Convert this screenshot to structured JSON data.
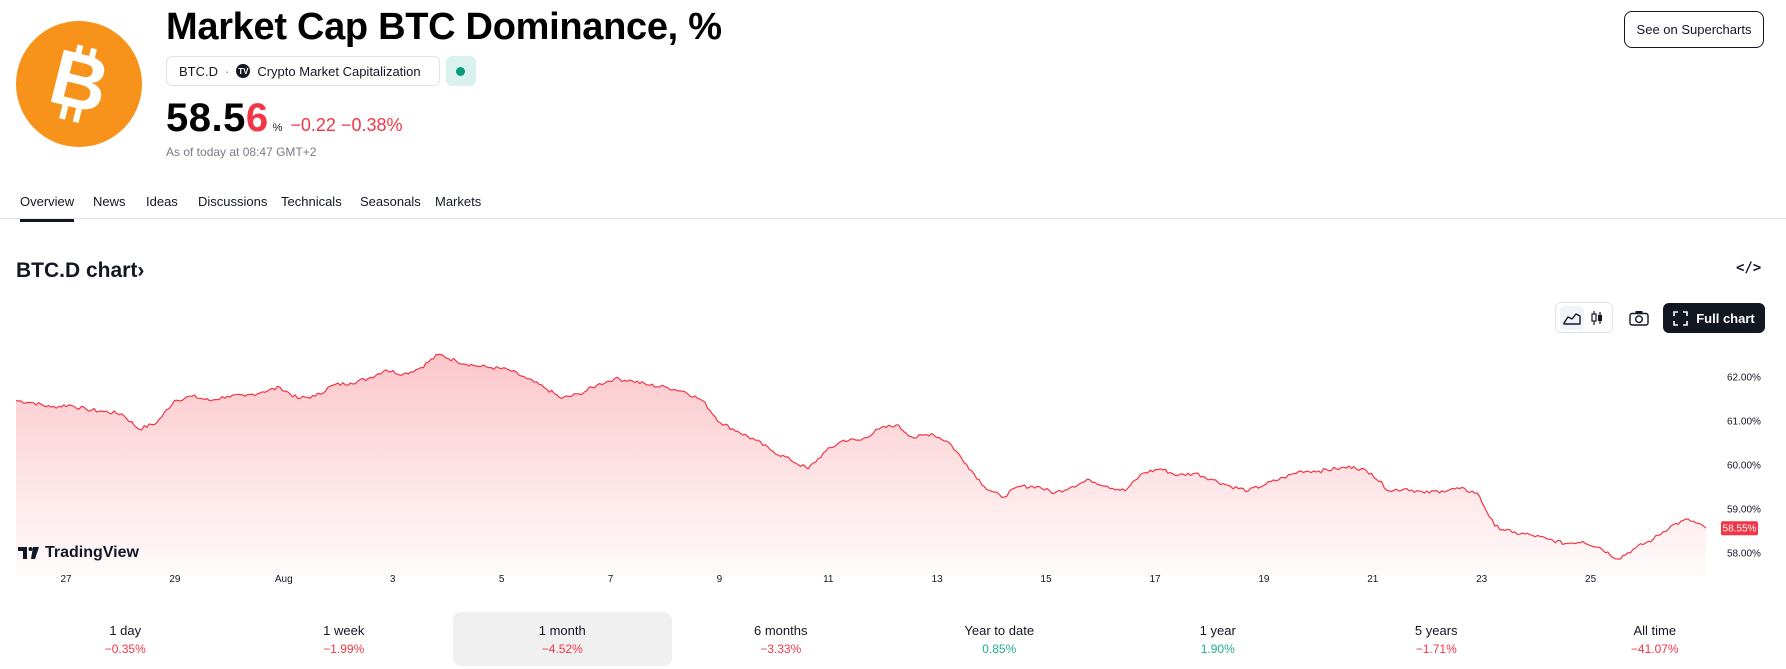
{
  "header": {
    "title": "Market Cap BTC Dominance, %",
    "symbol_chip": "BTC.D",
    "chip_separator": "·",
    "source_chip": "Crypto Market Capitalization",
    "price_main": "58.5",
    "price_last_digit": "6",
    "price_unit": "%",
    "change": "−0.22 −0.38%",
    "as_of": "As of today at 08:47 GMT+2",
    "supercharts_button": "See on Supercharts",
    "brand_color": "#f7931a",
    "negative_color": "#f23645",
    "positive_color": "#22ab94"
  },
  "tabs": [
    {
      "label": "Overview",
      "active": true
    },
    {
      "label": "News"
    },
    {
      "label": "Ideas"
    },
    {
      "label": "Discussions"
    },
    {
      "label": "Technicals"
    },
    {
      "label": "Seasonals"
    },
    {
      "label": "Markets"
    }
  ],
  "chart_section": {
    "title": "BTC.D chart",
    "title_chevron": "›",
    "embed_icon": "code-embed-icon",
    "area_style_icon": "area-chart-icon",
    "candles_style_icon": "candles-icon",
    "snapshot_icon": "camera-icon",
    "full_chart_button": "Full chart",
    "full_chart_icon": "fullscreen-icon",
    "watermark": "TradingView"
  },
  "chart_data": {
    "type": "area",
    "title": "",
    "line_color": "#f23645",
    "x_tick_labels": [
      "27",
      "29",
      "Aug",
      "3",
      "5",
      "7",
      "9",
      "11",
      "13",
      "15",
      "17",
      "19",
      "21",
      "23",
      "25"
    ],
    "y_tick_labels": [
      "62.00%",
      "61.00%",
      "60.00%",
      "59.00%",
      "58.00%"
    ],
    "ylim": [
      57.6,
      62.6
    ],
    "last_value_label": "58.55%",
    "series": [
      {
        "values": [
          61.45,
          61.4,
          61.3,
          61.35,
          61.25,
          61.2,
          61.15,
          60.8,
          60.95,
          61.45,
          61.55,
          61.45,
          61.55,
          61.55,
          61.65,
          61.75,
          61.5,
          61.55,
          61.8,
          61.85,
          61.95,
          62.15,
          62.05,
          62.2,
          62.5,
          62.35,
          62.25,
          62.2,
          62.15,
          61.95,
          61.75,
          61.5,
          61.6,
          61.8,
          61.95,
          61.9,
          61.8,
          61.75,
          61.65,
          61.45,
          60.95,
          60.75,
          60.55,
          60.3,
          60.1,
          59.9,
          60.3,
          60.55,
          60.55,
          60.8,
          60.9,
          60.6,
          60.7,
          60.5,
          60.0,
          59.5,
          59.25,
          59.5,
          59.5,
          59.35,
          59.5,
          59.65,
          59.5,
          59.4,
          59.8,
          59.9,
          59.75,
          59.8,
          59.65,
          59.5,
          59.4,
          59.55,
          59.7,
          59.85,
          59.85,
          59.9,
          59.95,
          59.8,
          59.4,
          59.45,
          59.35,
          59.4,
          59.45,
          59.35,
          58.6,
          58.45,
          58.4,
          58.3,
          58.2,
          58.25,
          58.1,
          57.85,
          58.1,
          58.3,
          58.6,
          58.75,
          58.55
        ]
      }
    ],
    "grid": false,
    "legend": "none"
  },
  "periods": [
    {
      "label": "1 day",
      "change": "−0.35%",
      "direction": "neg"
    },
    {
      "label": "1 week",
      "change": "−1.99%",
      "direction": "neg"
    },
    {
      "label": "1 month",
      "change": "−4.52%",
      "direction": "neg",
      "active": true
    },
    {
      "label": "6 months",
      "change": "−3.33%",
      "direction": "neg"
    },
    {
      "label": "Year to date",
      "change": "0.85%",
      "direction": "pos"
    },
    {
      "label": "1 year",
      "change": "1.90%",
      "direction": "pos"
    },
    {
      "label": "5 years",
      "change": "−1.71%",
      "direction": "neg"
    },
    {
      "label": "All time",
      "change": "−41.07%",
      "direction": "neg"
    }
  ]
}
